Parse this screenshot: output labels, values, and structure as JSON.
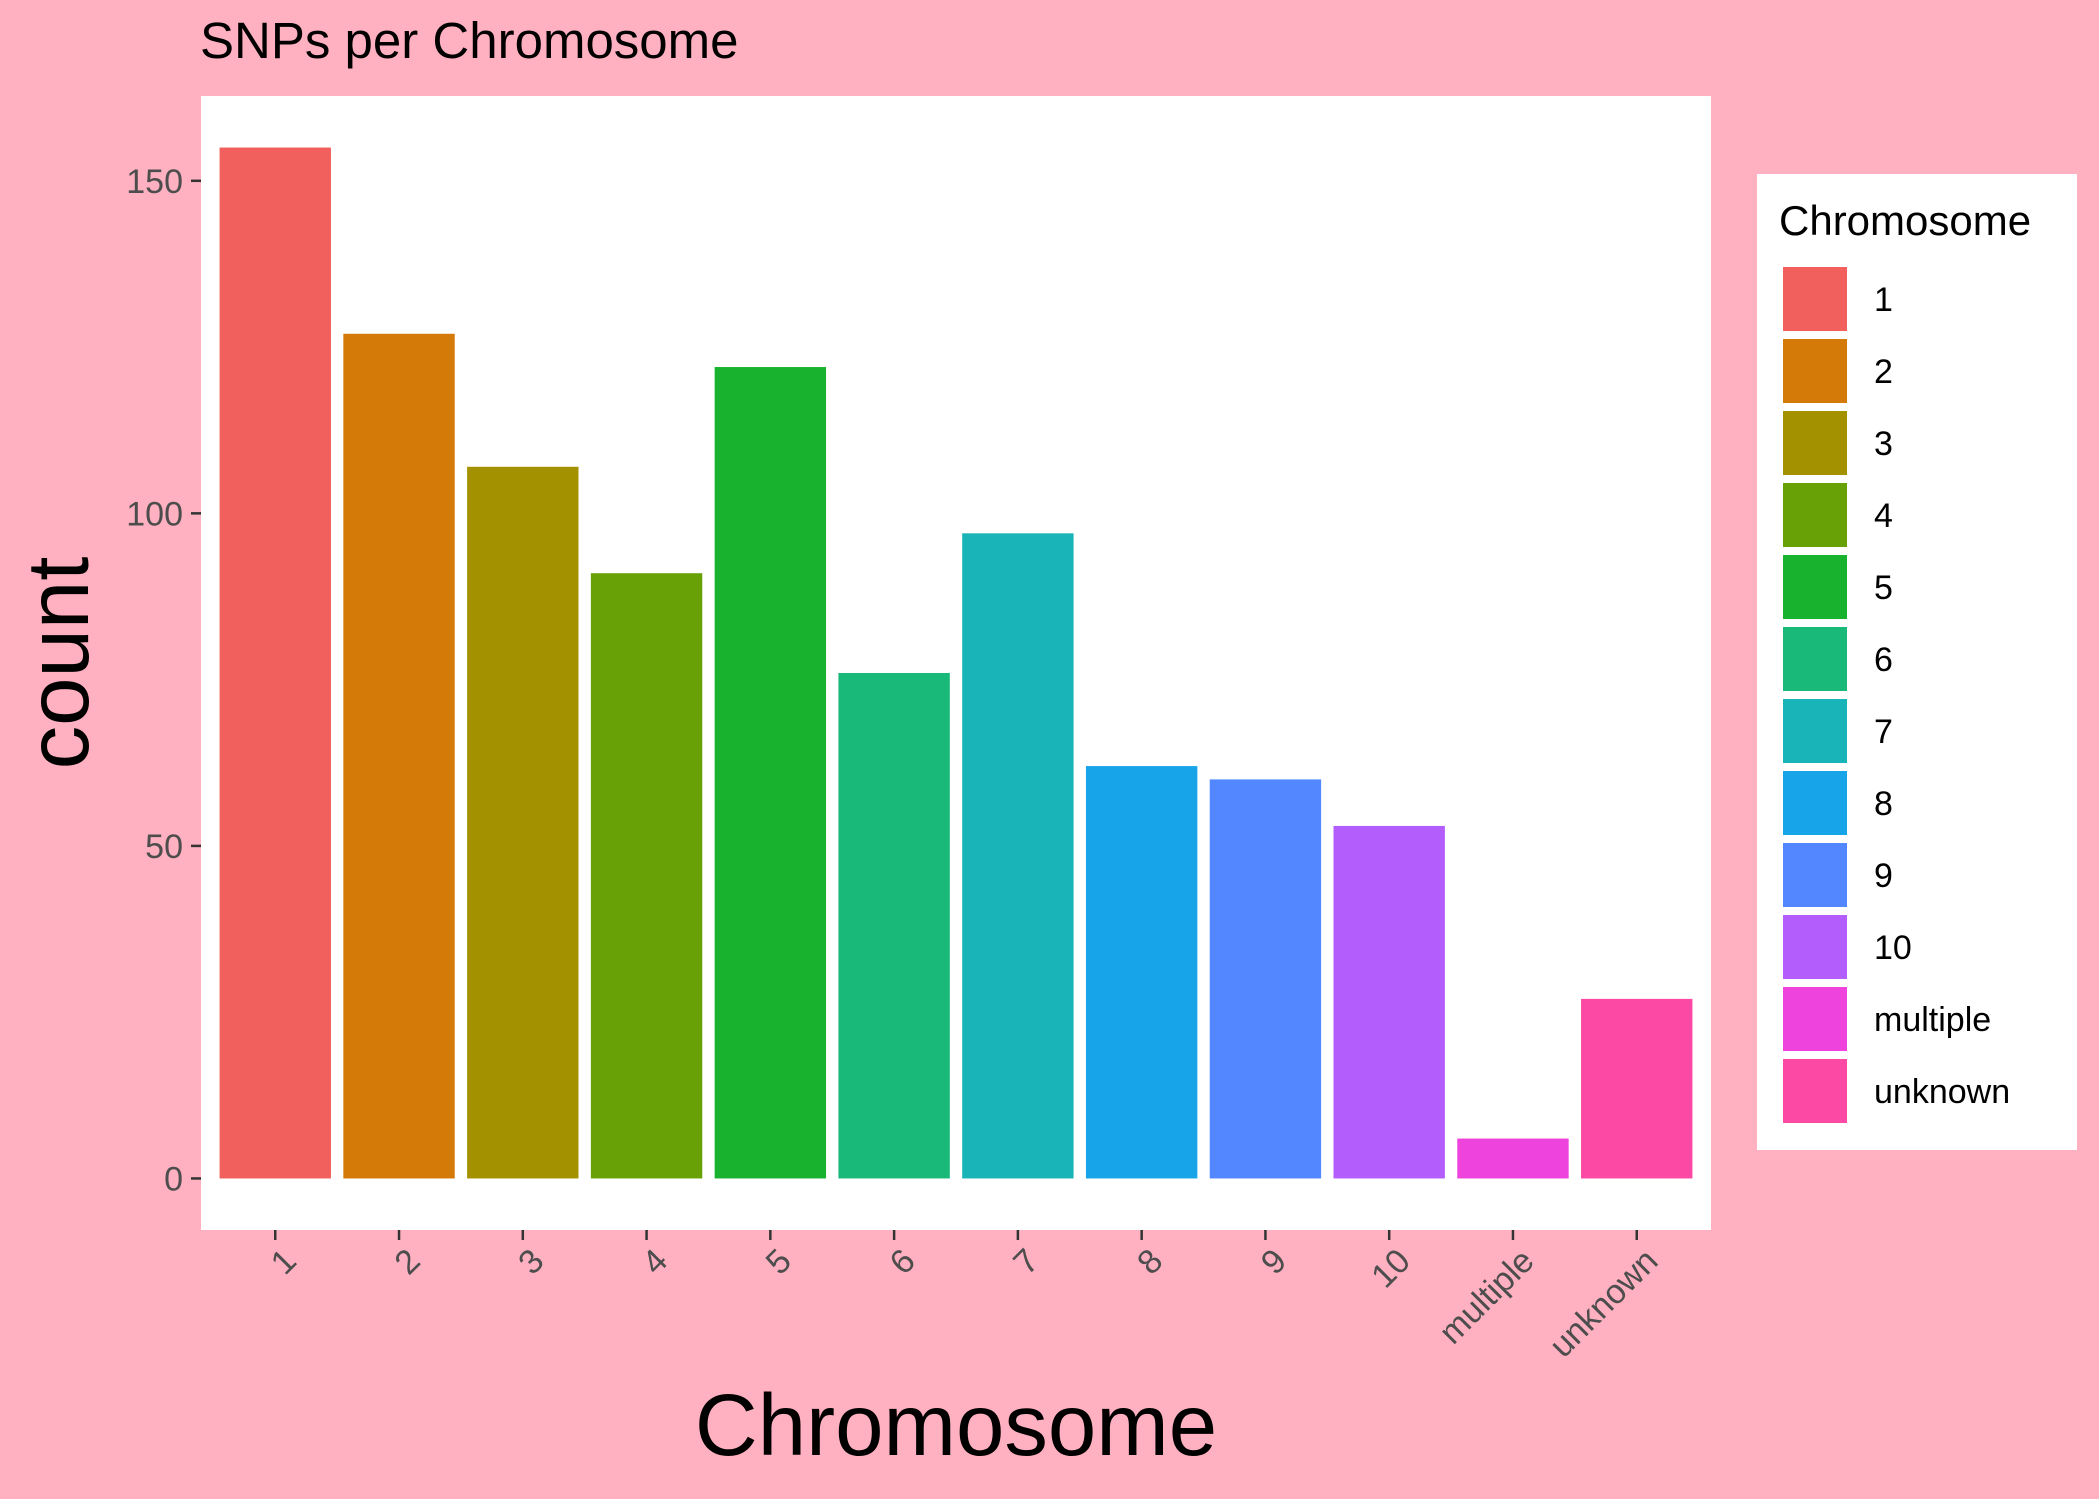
{
  "colors": {
    "page_background": "#ffb1c1",
    "panel_background": "#ffffff",
    "legend_background": "#ffffff",
    "text": "#000000",
    "tick_text": "#4d4d4d",
    "tick_mark": "#333333",
    "bar_fills": [
      "#F2605D",
      "#D47A08",
      "#A49100",
      "#67A106",
      "#18B22E",
      "#19B97A",
      "#19B4B8",
      "#17A4E9",
      "#5387FF",
      "#B45DFD",
      "#EE43DD",
      "#FB49A4"
    ]
  },
  "chart_data": {
    "type": "bar",
    "title": "SNPs per Chromosome",
    "xlabel": "Chromosome",
    "ylabel": "count",
    "categories": [
      "1",
      "2",
      "3",
      "4",
      "5",
      "6",
      "7",
      "8",
      "9",
      "10",
      "multiple",
      "unknown"
    ],
    "values": [
      155,
      127,
      107,
      91,
      122,
      76,
      97,
      62,
      60,
      53,
      6,
      27
    ],
    "ylim": [
      -7.75,
      162.75
    ],
    "yticks": [
      0,
      50,
      100,
      150
    ],
    "ytick_labels": [
      "0",
      "50",
      "100",
      "150"
    ],
    "xtick_rotation": 45,
    "grid": false,
    "legend": {
      "title": "Chromosome",
      "placement": "right",
      "entries": [
        "1",
        "2",
        "3",
        "4",
        "5",
        "6",
        "7",
        "8",
        "9",
        "10",
        "multiple",
        "unknown"
      ]
    }
  }
}
